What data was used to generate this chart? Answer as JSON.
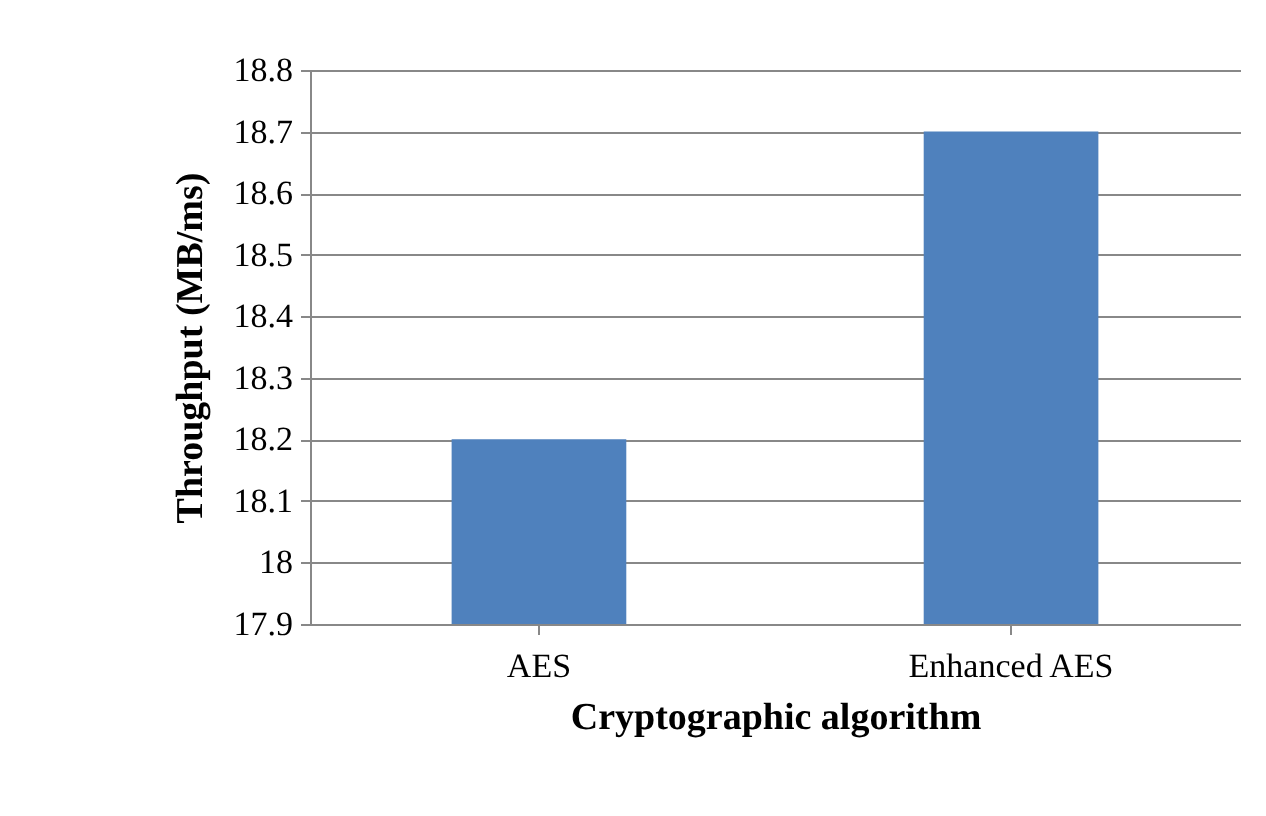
{
  "chart_data": {
    "type": "bar",
    "xlabel": "Cryptographic algorithm",
    "ylabel": "Throughput (MB/ms)",
    "categories": [
      "AES",
      "Enhanced AES"
    ],
    "values": [
      18.2,
      18.7
    ],
    "color": "#4f81bd",
    "ylim": [
      17.9,
      18.8
    ],
    "yticks": [
      17.9,
      18,
      18.1,
      18.2,
      18.3,
      18.4,
      18.5,
      18.6,
      18.7,
      18.8
    ],
    "grid": "y"
  }
}
